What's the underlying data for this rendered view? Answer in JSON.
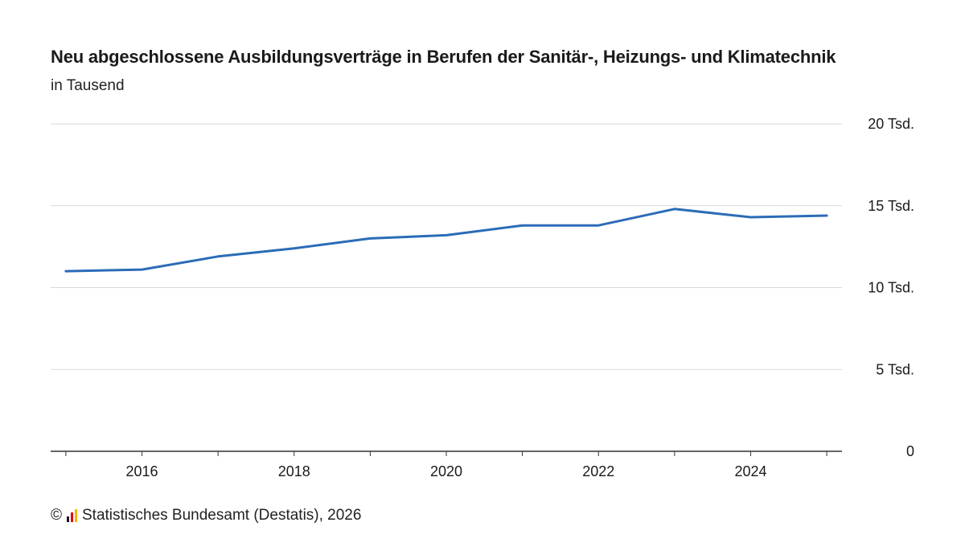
{
  "chart_data": {
    "type": "line",
    "title": "Neu abgeschlossene Ausbildungsverträge in Berufen der Sanitär-, Heizungs- und Klimatechnik",
    "subtitle": "in Tausend",
    "x": [
      2015,
      2016,
      2017,
      2018,
      2019,
      2020,
      2021,
      2022,
      2023,
      2024,
      2025
    ],
    "series": [
      {
        "values": [
          11.0,
          11.1,
          11.9,
          12.4,
          13.0,
          13.2,
          13.8,
          13.8,
          14.8,
          14.3,
          14.4
        ]
      }
    ],
    "xlim": [
      2014.8,
      2025.2
    ],
    "ylim": [
      0,
      20
    ],
    "y_ticks": [
      {
        "value": 0,
        "label": "0"
      },
      {
        "value": 5,
        "label": "5 Tsd."
      },
      {
        "value": 10,
        "label": "10 Tsd."
      },
      {
        "value": 15,
        "label": "15 Tsd."
      },
      {
        "value": 20,
        "label": "20 Tsd."
      }
    ],
    "x_ticks": [
      {
        "value": 2016,
        "label": "2016"
      },
      {
        "value": 2018,
        "label": "2018"
      },
      {
        "value": 2020,
        "label": "2020"
      },
      {
        "value": 2022,
        "label": "2022"
      },
      {
        "value": 2024,
        "label": "2024"
      }
    ],
    "x_minor_ticks": [
      2015,
      2016,
      2017,
      2018,
      2019,
      2020,
      2021,
      2022,
      2023,
      2024,
      2025
    ],
    "line_color": "#2b6cb7",
    "grid": true,
    "y_axis_position": "right"
  },
  "footer": {
    "copyright_symbol": "©",
    "source": "Statistisches Bundesamt (Destatis), 2026",
    "logo_colors": [
      "#1a1a1a",
      "#e30613",
      "#f5b800"
    ]
  }
}
